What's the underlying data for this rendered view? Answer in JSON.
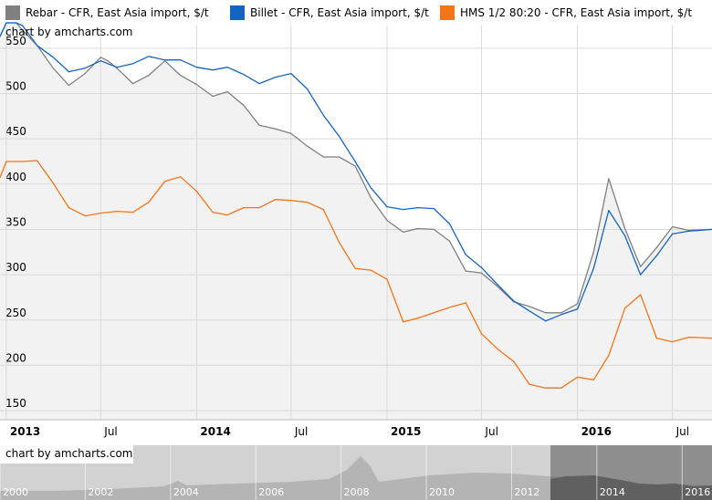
{
  "legend": [
    {
      "label": "Rebar - CFR, East Asia import, $/t",
      "color": "#808080"
    },
    {
      "label": "Billet - CFR, East Asia import, $/t",
      "color": "#1565c0"
    },
    {
      "label": "HMS 1/2 80:20 - CFR, East Asia import, $/t",
      "color": "#f47418"
    }
  ],
  "credit_main": "chart by amcharts.com",
  "credit_scroll": "chart by amcharts.com",
  "chart_data": {
    "type": "line",
    "title": "",
    "xlabel": "",
    "ylabel": "",
    "ylim": [
      140,
      575
    ],
    "xlim": [
      "2012-12-20",
      "2016-09-15"
    ],
    "y_ticks": [
      150,
      200,
      250,
      300,
      350,
      400,
      450,
      500,
      550
    ],
    "x_ticks": [
      {
        "date": "2013-01-01",
        "label": "2013",
        "bold": true
      },
      {
        "date": "2013-07-01",
        "label": "Jul",
        "bold": false
      },
      {
        "date": "2014-01-01",
        "label": "2014",
        "bold": true
      },
      {
        "date": "2014-07-01",
        "label": "Jul",
        "bold": false
      },
      {
        "date": "2015-01-01",
        "label": "2015",
        "bold": true
      },
      {
        "date": "2015-07-01",
        "label": "Jul",
        "bold": false
      },
      {
        "date": "2016-01-01",
        "label": "2016",
        "bold": true
      },
      {
        "date": "2016-07-01",
        "label": "Jul",
        "bold": false
      }
    ],
    "grid": true,
    "legend_position": "top",
    "series": [
      {
        "name": "Rebar - CFR, East Asia import, $/t",
        "color": "#808080",
        "fill": true,
        "points": [
          [
            "2012-12-20",
            563
          ],
          [
            "2013-01-01",
            578
          ],
          [
            "2013-01-20",
            578
          ],
          [
            "2013-02-01",
            570
          ],
          [
            "2013-03-01",
            553
          ],
          [
            "2013-04-01",
            528
          ],
          [
            "2013-05-01",
            509
          ],
          [
            "2013-06-01",
            522
          ],
          [
            "2013-07-01",
            540
          ],
          [
            "2013-07-15",
            536
          ],
          [
            "2013-08-01",
            528
          ],
          [
            "2013-09-01",
            511
          ],
          [
            "2013-10-01",
            520
          ],
          [
            "2013-11-01",
            536
          ],
          [
            "2013-12-01",
            520
          ],
          [
            "2014-01-01",
            510
          ],
          [
            "2014-02-01",
            497
          ],
          [
            "2014-03-01",
            502
          ],
          [
            "2014-04-01",
            487
          ],
          [
            "2014-05-01",
            465
          ],
          [
            "2014-06-01",
            461
          ],
          [
            "2014-07-01",
            456
          ],
          [
            "2014-08-01",
            442
          ],
          [
            "2014-09-01",
            430
          ],
          [
            "2014-10-01",
            430
          ],
          [
            "2014-11-01",
            420
          ],
          [
            "2014-12-01",
            385
          ],
          [
            "2015-01-01",
            360
          ],
          [
            "2015-02-01",
            347
          ],
          [
            "2015-03-01",
            351
          ],
          [
            "2015-04-01",
            350
          ],
          [
            "2015-05-01",
            337
          ],
          [
            "2015-06-01",
            304
          ],
          [
            "2015-07-01",
            302
          ],
          [
            "2015-08-01",
            287
          ],
          [
            "2015-09-01",
            270
          ],
          [
            "2015-10-01",
            265
          ],
          [
            "2015-11-01",
            258
          ],
          [
            "2015-12-01",
            258
          ],
          [
            "2016-01-01",
            268
          ],
          [
            "2016-02-01",
            325
          ],
          [
            "2016-03-01",
            406
          ],
          [
            "2016-04-01",
            351
          ],
          [
            "2016-05-01",
            309
          ],
          [
            "2016-06-01",
            330
          ],
          [
            "2016-07-01",
            353
          ],
          [
            "2016-08-01",
            349
          ],
          [
            "2016-09-15",
            350
          ]
        ]
      },
      {
        "name": "Billet - CFR, East Asia import, $/t",
        "color": "#1565c0",
        "fill": false,
        "points": [
          [
            "2012-12-20",
            563
          ],
          [
            "2013-01-01",
            578
          ],
          [
            "2013-01-20",
            578
          ],
          [
            "2013-02-01",
            575
          ],
          [
            "2013-03-01",
            553
          ],
          [
            "2013-04-01",
            540
          ],
          [
            "2013-05-01",
            524
          ],
          [
            "2013-06-01",
            528
          ],
          [
            "2013-07-01",
            536
          ],
          [
            "2013-08-01",
            529
          ],
          [
            "2013-09-01",
            533
          ],
          [
            "2013-10-01",
            541
          ],
          [
            "2013-11-01",
            537
          ],
          [
            "2013-12-01",
            537
          ],
          [
            "2014-01-01",
            529
          ],
          [
            "2014-02-01",
            526
          ],
          [
            "2014-03-01",
            529
          ],
          [
            "2014-04-01",
            521
          ],
          [
            "2014-05-01",
            511
          ],
          [
            "2014-06-01",
            518
          ],
          [
            "2014-07-01",
            522
          ],
          [
            "2014-08-01",
            505
          ],
          [
            "2014-09-01",
            476
          ],
          [
            "2014-10-01",
            453
          ],
          [
            "2014-11-01",
            425
          ],
          [
            "2014-12-01",
            396
          ],
          [
            "2015-01-01",
            375
          ],
          [
            "2015-02-01",
            372
          ],
          [
            "2015-03-01",
            374
          ],
          [
            "2015-04-01",
            373
          ],
          [
            "2015-05-01",
            356
          ],
          [
            "2015-06-01",
            322
          ],
          [
            "2015-07-01",
            308
          ],
          [
            "2015-08-01",
            289
          ],
          [
            "2015-09-01",
            271
          ],
          [
            "2015-10-01",
            260
          ],
          [
            "2015-11-01",
            249
          ],
          [
            "2015-12-01",
            256
          ],
          [
            "2016-01-01",
            262
          ],
          [
            "2016-02-01",
            307
          ],
          [
            "2016-03-01",
            371
          ],
          [
            "2016-04-01",
            343
          ],
          [
            "2016-05-01",
            300
          ],
          [
            "2016-06-01",
            321
          ],
          [
            "2016-07-01",
            345
          ],
          [
            "2016-08-01",
            348
          ],
          [
            "2016-09-15",
            350
          ]
        ]
      },
      {
        "name": "HMS 1/2 80:20 - CFR, East Asia import, $/t",
        "color": "#f47418",
        "fill": false,
        "points": [
          [
            "2012-12-20",
            407
          ],
          [
            "2013-01-01",
            425
          ],
          [
            "2013-02-01",
            425
          ],
          [
            "2013-03-01",
            426
          ],
          [
            "2013-04-01",
            401
          ],
          [
            "2013-05-01",
            374
          ],
          [
            "2013-06-01",
            365
          ],
          [
            "2013-07-01",
            368
          ],
          [
            "2013-08-01",
            370
          ],
          [
            "2013-09-01",
            369
          ],
          [
            "2013-10-01",
            380
          ],
          [
            "2013-11-01",
            403
          ],
          [
            "2013-12-01",
            408
          ],
          [
            "2014-01-01",
            392
          ],
          [
            "2014-02-01",
            369
          ],
          [
            "2014-03-01",
            366
          ],
          [
            "2014-04-01",
            374
          ],
          [
            "2014-05-01",
            374
          ],
          [
            "2014-06-01",
            383
          ],
          [
            "2014-07-01",
            382
          ],
          [
            "2014-08-01",
            380
          ],
          [
            "2014-09-01",
            372
          ],
          [
            "2014-10-01",
            336
          ],
          [
            "2014-11-01",
            307
          ],
          [
            "2014-12-01",
            305
          ],
          [
            "2015-01-01",
            295
          ],
          [
            "2015-02-01",
            248
          ],
          [
            "2015-03-01",
            252
          ],
          [
            "2015-04-01",
            258
          ],
          [
            "2015-05-01",
            264
          ],
          [
            "2015-06-01",
            269
          ],
          [
            "2015-07-01",
            235
          ],
          [
            "2015-08-01",
            218
          ],
          [
            "2015-09-01",
            204
          ],
          [
            "2015-10-01",
            179
          ],
          [
            "2015-11-01",
            175
          ],
          [
            "2015-12-01",
            175
          ],
          [
            "2016-01-01",
            187
          ],
          [
            "2016-02-01",
            184
          ],
          [
            "2016-03-01",
            211
          ],
          [
            "2016-04-01",
            263
          ],
          [
            "2016-05-01",
            278
          ],
          [
            "2016-06-01",
            230
          ],
          [
            "2016-07-01",
            226
          ],
          [
            "2016-08-01",
            231
          ],
          [
            "2016-09-15",
            230
          ]
        ]
      }
    ]
  },
  "scrollbar": {
    "labels": [
      "2000",
      "2002",
      "2004",
      "2006",
      "2008",
      "2010",
      "2012",
      "2014",
      "2016"
    ],
    "selected_range": [
      "2013",
      "2016"
    ]
  }
}
